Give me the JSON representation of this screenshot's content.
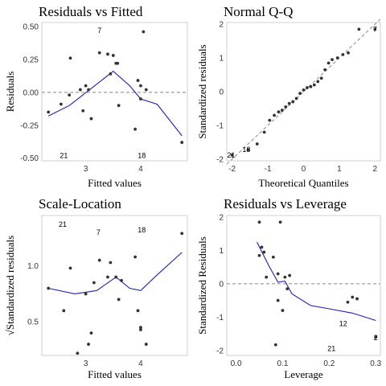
{
  "chart_data": [
    {
      "type": "scatter",
      "title": "Residuals vs Fitted",
      "xlabel": "Fitted values",
      "ylabel": "Residuals",
      "xlim": [
        2.2,
        4.85
      ],
      "ylim": [
        -0.52,
        0.53
      ],
      "xticks": [
        3,
        4
      ],
      "yticks": [
        -0.5,
        -0.25,
        0.0,
        0.25,
        0.5
      ],
      "ytick_labels": [
        "-0.50",
        "-0.25",
        "0.00",
        "0.25",
        "0.50"
      ],
      "hline": 0,
      "points": [
        [
          2.32,
          -0.15
        ],
        [
          2.55,
          -0.09
        ],
        [
          2.7,
          -0.02
        ],
        [
          2.72,
          0.26
        ],
        [
          2.9,
          0.02
        ],
        [
          2.95,
          -0.14
        ],
        [
          3.0,
          0.05
        ],
        [
          3.05,
          0.02
        ],
        [
          3.1,
          -0.2
        ],
        [
          3.25,
          0.3
        ],
        [
          3.4,
          0.29
        ],
        [
          3.45,
          0.14
        ],
        [
          3.5,
          0.28
        ],
        [
          3.55,
          0.22
        ],
        [
          3.58,
          0.22
        ],
        [
          3.6,
          -0.1
        ],
        [
          3.9,
          -0.28
        ],
        [
          3.95,
          0.09
        ],
        [
          4.0,
          0.05
        ],
        [
          4.0,
          -0.05
        ],
        [
          4.05,
          0.46
        ],
        [
          4.1,
          0.02
        ],
        [
          4.75,
          -0.38
        ]
      ],
      "smooth": [
        [
          2.32,
          -0.18
        ],
        [
          2.7,
          -0.1
        ],
        [
          3.1,
          0.03
        ],
        [
          3.5,
          0.16
        ],
        [
          3.8,
          0.05
        ],
        [
          4.0,
          -0.05
        ],
        [
          4.3,
          -0.09
        ],
        [
          4.75,
          -0.33
        ]
      ],
      "point_labels": [
        {
          "text": "7",
          "x": 3.25,
          "y": 0.47
        },
        {
          "text": "21",
          "x": 2.6,
          "y": -0.48
        },
        {
          "text": "18",
          "x": 4.02,
          "y": -0.48
        }
      ]
    },
    {
      "type": "scatter",
      "title": "Normal Q-Q",
      "xlabel": "Theoretical Quantiles",
      "ylabel": "Standardized residuals",
      "xlim": [
        -2.15,
        2.15
      ],
      "ylim": [
        -2.05,
        2.05
      ],
      "xticks": [
        -2,
        -1,
        0,
        1,
        2
      ],
      "yticks": [
        -2,
        -1,
        0,
        1,
        2
      ],
      "ytick_labels": [
        "-2",
        "-1",
        "0",
        "1",
        "2"
      ],
      "refline": [
        [
          -2.15,
          -2.15
        ],
        [
          2.15,
          2.15
        ]
      ],
      "points": [
        [
          -2.0,
          -1.88
        ],
        [
          -1.55,
          -1.72
        ],
        [
          -1.3,
          -1.55
        ],
        [
          -1.1,
          -1.2
        ],
        [
          -0.95,
          -0.85
        ],
        [
          -0.82,
          -0.7
        ],
        [
          -0.7,
          -0.6
        ],
        [
          -0.6,
          -0.55
        ],
        [
          -0.5,
          -0.45
        ],
        [
          -0.4,
          -0.35
        ],
        [
          -0.3,
          -0.3
        ],
        [
          -0.2,
          -0.2
        ],
        [
          -0.1,
          -0.05
        ],
        [
          0.0,
          0.05
        ],
        [
          0.1,
          0.12
        ],
        [
          0.2,
          0.15
        ],
        [
          0.3,
          0.2
        ],
        [
          0.4,
          0.3
        ],
        [
          0.5,
          0.4
        ],
        [
          0.6,
          0.65
        ],
        [
          0.7,
          0.85
        ],
        [
          0.8,
          0.95
        ],
        [
          0.95,
          1.0
        ],
        [
          1.1,
          1.1
        ],
        [
          1.25,
          1.15
        ],
        [
          1.55,
          1.85
        ],
        [
          2.0,
          1.85
        ]
      ],
      "point_labels": [
        {
          "text": "21",
          "x": -2.03,
          "y": -1.88
        },
        {
          "text": "18",
          "x": -1.6,
          "y": -1.72
        },
        {
          "text": "7",
          "x": 2.0,
          "y": 1.85
        }
      ]
    },
    {
      "type": "scatter",
      "title": "Scale-Location",
      "xlabel": "Fitted values",
      "ylabel": "√Standardized residuals",
      "xlim": [
        2.2,
        4.85
      ],
      "ylim": [
        0.2,
        1.45
      ],
      "xticks": [
        3,
        4
      ],
      "yticks": [
        0.5,
        1.0
      ],
      "ytick_labels": [
        "0.5",
        "1.0"
      ],
      "points": [
        [
          2.32,
          0.8
        ],
        [
          2.6,
          0.6
        ],
        [
          2.72,
          0.98
        ],
        [
          2.85,
          0.22
        ],
        [
          3.0,
          0.75
        ],
        [
          3.05,
          0.3
        ],
        [
          3.1,
          0.4
        ],
        [
          3.15,
          0.85
        ],
        [
          3.25,
          1.05
        ],
        [
          3.4,
          0.9
        ],
        [
          3.45,
          1.03
        ],
        [
          3.55,
          0.9
        ],
        [
          3.6,
          0.7
        ],
        [
          3.65,
          0.87
        ],
        [
          3.9,
          1.08
        ],
        [
          3.95,
          0.6
        ],
        [
          4.0,
          0.45
        ],
        [
          4.0,
          0.43
        ],
        [
          4.1,
          0.3
        ],
        [
          4.75,
          1.29
        ]
      ],
      "smooth": [
        [
          2.32,
          0.8
        ],
        [
          2.8,
          0.75
        ],
        [
          3.2,
          0.78
        ],
        [
          3.55,
          0.9
        ],
        [
          3.8,
          0.8
        ],
        [
          4.0,
          0.78
        ],
        [
          4.3,
          0.92
        ],
        [
          4.75,
          1.12
        ]
      ],
      "point_labels": [
        {
          "text": "21",
          "x": 2.58,
          "y": 1.37
        },
        {
          "text": "7",
          "x": 3.23,
          "y": 1.3
        },
        {
          "text": "18",
          "x": 4.02,
          "y": 1.32
        }
      ]
    },
    {
      "type": "scatter",
      "title": "Residuals vs Leverage",
      "xlabel": "Leverage",
      "ylabel": "Standardized Residuals",
      "xlim": [
        -0.02,
        0.31
      ],
      "ylim": [
        -2.15,
        2.05
      ],
      "xticks": [
        0.0,
        0.1,
        0.2,
        0.3
      ],
      "xtick_labels": [
        "0.0",
        "0.1",
        "0.2",
        "0.3"
      ],
      "yticks": [
        -2,
        -1,
        0,
        1,
        2
      ],
      "ytick_labels": [
        "-2",
        "-1",
        "0",
        "1",
        "2"
      ],
      "hline": 0,
      "points": [
        [
          0.05,
          1.85
        ],
        [
          0.05,
          0.85
        ],
        [
          0.055,
          1.1
        ],
        [
          0.06,
          0.95
        ],
        [
          0.065,
          0.2
        ],
        [
          0.08,
          0.8
        ],
        [
          0.085,
          -1.83
        ],
        [
          0.09,
          0.3
        ],
        [
          0.09,
          -0.5
        ],
        [
          0.095,
          1.85
        ],
        [
          0.1,
          -0.8
        ],
        [
          0.105,
          0.2
        ],
        [
          0.11,
          -0.15
        ],
        [
          0.115,
          0.25
        ],
        [
          0.24,
          -0.55
        ],
        [
          0.25,
          -0.4
        ],
        [
          0.26,
          -0.45
        ],
        [
          0.3,
          -1.6
        ]
      ],
      "smooth": [
        [
          0.045,
          1.25
        ],
        [
          0.07,
          0.55
        ],
        [
          0.09,
          0.05
        ],
        [
          0.105,
          0.08
        ],
        [
          0.12,
          -0.3
        ],
        [
          0.16,
          -0.65
        ],
        [
          0.2,
          -0.75
        ],
        [
          0.25,
          -0.88
        ],
        [
          0.3,
          -1.1
        ]
      ],
      "point_labels": [
        {
          "text": "12",
          "x": 0.23,
          "y": -1.2
        },
        {
          "text": "21",
          "x": 0.205,
          "y": -1.95
        },
        {
          "text": "2",
          "x": 0.3,
          "y": -1.62
        }
      ]
    }
  ]
}
